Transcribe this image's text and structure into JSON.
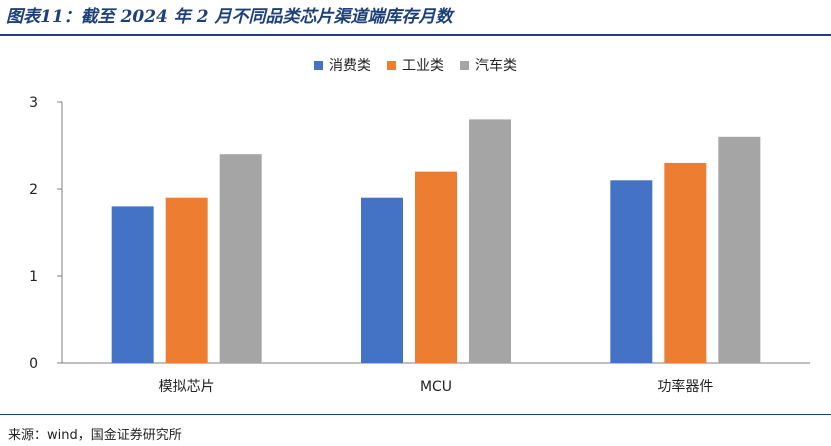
{
  "title": "图表11：截至 2024 年 2 月不同品类芯片渠道端库存月数",
  "source": "来源：wind，国金证券研究所",
  "colors": {
    "title": "#1d3f7a",
    "axis": "#7f7f7f"
  },
  "chart_data": {
    "type": "bar",
    "categories": [
      "模拟芯片",
      "MCU",
      "功率器件"
    ],
    "series": [
      {
        "name": "消费类",
        "color": "#4472c4",
        "values": [
          1.8,
          1.9,
          2.1
        ]
      },
      {
        "name": "工业类",
        "color": "#ed7d31",
        "values": [
          1.9,
          2.2,
          2.3
        ]
      },
      {
        "name": "汽车类",
        "color": "#a5a5a5",
        "values": [
          2.4,
          2.8,
          2.6
        ]
      }
    ],
    "yticks": [
      0,
      1,
      2,
      3
    ],
    "ylim": [
      0,
      3
    ],
    "grid": false,
    "legend_position": "top-center"
  }
}
